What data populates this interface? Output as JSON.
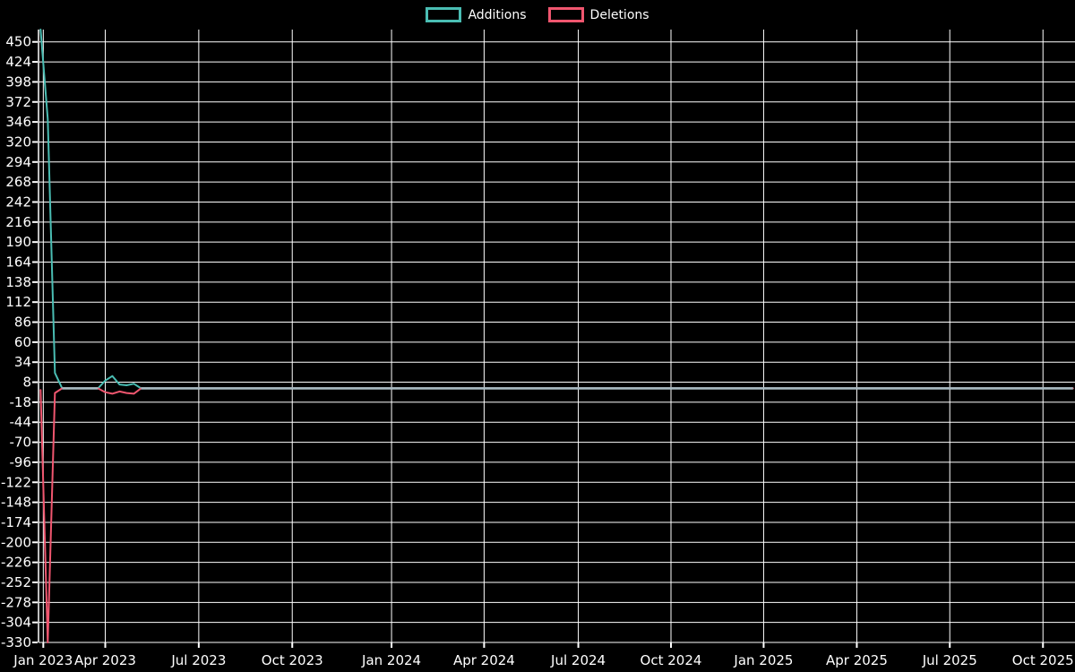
{
  "colors": {
    "background": "#000000",
    "grid": "#ffffff",
    "text": "#ffffff",
    "additions": "#4abdb3",
    "deletions": "#f0566f",
    "zero_overlap": "#a8bac2"
  },
  "legend": [
    {
      "label": "Additions",
      "color": "#4abdb3"
    },
    {
      "label": "Deletions",
      "color": "#f0566f"
    }
  ],
  "chart_data": {
    "type": "line",
    "title": "",
    "xlabel": "",
    "ylabel": "",
    "grid": true,
    "legend_position": "top-center",
    "ylim": [
      -330,
      466
    ],
    "y_tick_step": 26,
    "y_ticks": [
      450,
      424,
      398,
      372,
      346,
      320,
      294,
      268,
      242,
      216,
      190,
      164,
      138,
      112,
      86,
      60,
      34,
      8,
      -18,
      -44,
      -70,
      -96,
      -122,
      -148,
      -174,
      -200,
      -226,
      -252,
      -278,
      -304,
      -330
    ],
    "x_ticks": [
      {
        "label": "Jan 2023",
        "f": 0.0046
      },
      {
        "label": "Apr 2023",
        "f": 0.0644
      },
      {
        "label": "Jul 2023",
        "f": 0.1546
      },
      {
        "label": "Oct 2023",
        "f": 0.2448
      },
      {
        "label": "Jan 2024",
        "f": 0.3406
      },
      {
        "label": "Apr 2024",
        "f": 0.4299
      },
      {
        "label": "Jul 2024",
        "f": 0.5208
      },
      {
        "label": "Oct 2024",
        "f": 0.6102
      },
      {
        "label": "Jan 2025",
        "f": 0.6996
      },
      {
        "label": "Apr 2025",
        "f": 0.7895
      },
      {
        "label": "Jul 2025",
        "f": 0.8792
      },
      {
        "label": "Oct 2025",
        "f": 0.9691
      }
    ],
    "series": [
      {
        "name": "Additions",
        "color": "#4abdb3",
        "points": [
          {
            "date": "2022-12-25",
            "f": 0.002,
            "v": 466
          },
          {
            "date": "2023-01-01",
            "f": 0.0089,
            "v": 350
          },
          {
            "date": "2023-01-08",
            "f": 0.0158,
            "v": 20
          },
          {
            "date": "2023-01-15",
            "f": 0.0228,
            "v": 0
          },
          {
            "date": "2023-03-19",
            "f": 0.0574,
            "v": 0
          },
          {
            "date": "2023-03-26",
            "f": 0.0643,
            "v": 10
          },
          {
            "date": "2023-04-09",
            "f": 0.0712,
            "v": 16
          },
          {
            "date": "2023-04-16",
            "f": 0.0781,
            "v": 5
          },
          {
            "date": "2023-04-23",
            "f": 0.085,
            "v": 4
          },
          {
            "date": "2023-04-30",
            "f": 0.092,
            "v": 6
          },
          {
            "date": "2023-05-07",
            "f": 0.0989,
            "v": 0
          },
          {
            "date": "2025-11-02",
            "f": 0.998,
            "v": 0
          }
        ]
      },
      {
        "name": "Deletions",
        "color": "#f0566f",
        "points": [
          {
            "date": "2022-12-25",
            "f": 0.002,
            "v": -2
          },
          {
            "date": "2023-01-01",
            "f": 0.0089,
            "v": -330
          },
          {
            "date": "2023-01-08",
            "f": 0.0158,
            "v": -6
          },
          {
            "date": "2023-01-15",
            "f": 0.0228,
            "v": 0
          },
          {
            "date": "2023-03-19",
            "f": 0.0574,
            "v": 0
          },
          {
            "date": "2023-03-26",
            "f": 0.0643,
            "v": -5
          },
          {
            "date": "2023-04-09",
            "f": 0.0712,
            "v": -7
          },
          {
            "date": "2023-04-16",
            "f": 0.0781,
            "v": -4
          },
          {
            "date": "2023-04-23",
            "f": 0.085,
            "v": -6
          },
          {
            "date": "2023-04-30",
            "f": 0.092,
            "v": -7
          },
          {
            "date": "2023-05-07",
            "f": 0.0989,
            "v": 0
          },
          {
            "date": "2025-11-02",
            "f": 0.998,
            "v": 0
          }
        ]
      }
    ],
    "zero_overlap_segments": [
      {
        "f1": 0.0228,
        "f2": 0.0574
      },
      {
        "f1": 0.0989,
        "f2": 0.998
      }
    ]
  }
}
